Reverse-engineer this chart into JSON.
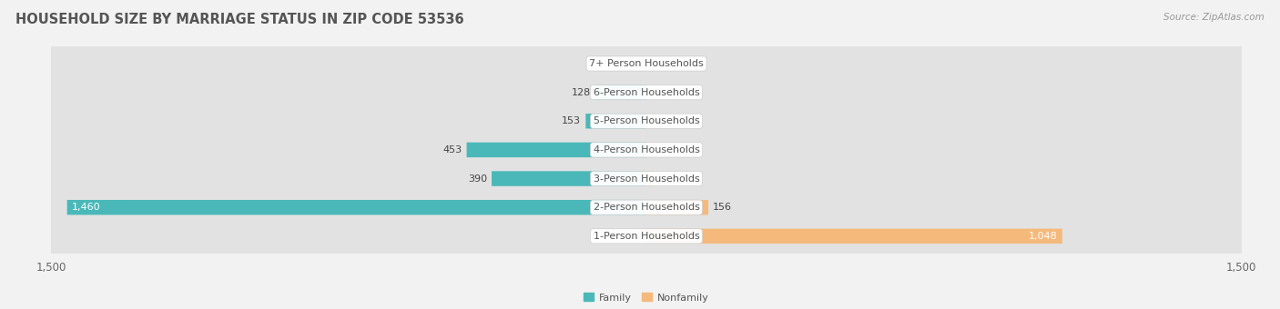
{
  "title": "HOUSEHOLD SIZE BY MARRIAGE STATUS IN ZIP CODE 53536",
  "source": "Source: ZipAtlas.com",
  "categories": [
    "7+ Person Households",
    "6-Person Households",
    "5-Person Households",
    "4-Person Households",
    "3-Person Households",
    "2-Person Households",
    "1-Person Households"
  ],
  "family_values": [
    0,
    128,
    153,
    453,
    390,
    1460,
    0
  ],
  "nonfamily_values": [
    0,
    0,
    0,
    2,
    18,
    156,
    1048
  ],
  "family_color": "#4ab8b8",
  "nonfamily_color": "#f5b97c",
  "axis_limit": 1500,
  "bg_color": "#f2f2f2",
  "row_bg_color": "#e2e2e2",
  "title_fontsize": 10.5,
  "label_fontsize": 8.0,
  "tick_fontsize": 8.5,
  "value_fontsize": 8.0
}
